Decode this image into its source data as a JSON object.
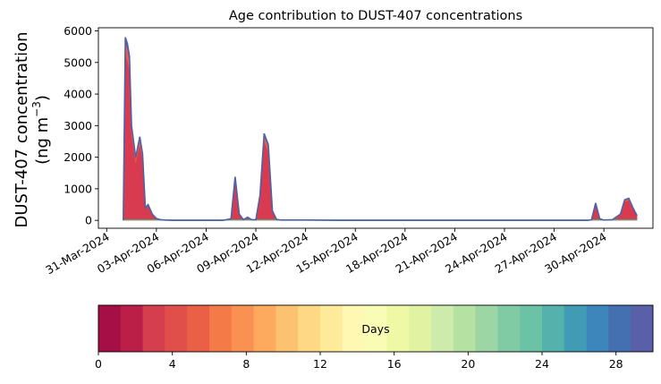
{
  "chart_data": [
    {
      "type": "area",
      "stacked": true,
      "title": "Age contribution to DUST-407 concentrations",
      "ylabel_line1": "DUST-407 concentration",
      "ylabel_line2_prefix": "(ng m",
      "ylabel_line2_sup": "−3",
      "ylabel_line2_suffix": ")",
      "xlabel": "",
      "ylim": [
        -250,
        6100
      ],
      "yticks": [
        0,
        1000,
        2000,
        3000,
        4000,
        5000,
        6000
      ],
      "xlim": [
        "2024-03-30T12:00",
        "2024-05-02T23:00"
      ],
      "xticks": [
        "2024-03-31",
        "2024-04-03",
        "2024-04-06",
        "2024-04-09",
        "2024-04-12",
        "2024-04-15",
        "2024-04-18",
        "2024-04-21",
        "2024-04-24",
        "2024-04-27",
        "2024-04-30"
      ],
      "xtick_labels": [
        "31-Mar-2024",
        "03-Apr-2024",
        "06-Apr-2024",
        "09-Apr-2024",
        "12-Apr-2024",
        "15-Apr-2024",
        "18-Apr-2024",
        "21-Apr-2024",
        "24-Apr-2024",
        "27-Apr-2024",
        "30-Apr-2024"
      ],
      "grid": false,
      "series": [
        {
          "color": "#4c63a8",
          "x": [
            "2024-04-01T00:00",
            "2024-04-01T03:00",
            "2024-04-01T06:00",
            "2024-04-01T09:00",
            "2024-04-01T12:00",
            "2024-04-01T18:00",
            "2024-04-02T00:00",
            "2024-04-02T04:00",
            "2024-04-02T08:00",
            "2024-04-02T12:00",
            "2024-04-02T18:00",
            "2024-04-03T00:00",
            "2024-04-03T06:00",
            "2024-04-03T12:00",
            "2024-04-04T00:00",
            "2024-04-05T00:00",
            "2024-04-06T00:00",
            "2024-04-07T00:00",
            "2024-04-07T12:00",
            "2024-04-07T18:00",
            "2024-04-08T00:00",
            "2024-04-08T06:00",
            "2024-04-08T12:00",
            "2024-04-08T18:00",
            "2024-04-09T00:00",
            "2024-04-09T06:00",
            "2024-04-09T12:00",
            "2024-04-09T18:00",
            "2024-04-10T00:00",
            "2024-04-10T06:00",
            "2024-04-10T12:00",
            "2024-04-11T00:00",
            "2024-04-12T00:00",
            "2024-04-14T00:00",
            "2024-04-18T00:00",
            "2024-04-22T00:00",
            "2024-04-26T00:00",
            "2024-04-28T00:00",
            "2024-04-29T00:00",
            "2024-04-29T06:00",
            "2024-04-29T12:00",
            "2024-04-29T18:00",
            "2024-04-30T00:00",
            "2024-04-30T12:00",
            "2024-05-01T00:00",
            "2024-05-01T06:00",
            "2024-05-01T12:00",
            "2024-05-01T18:00",
            "2024-05-02T00:00"
          ],
          "values": [
            0,
            5800,
            5600,
            5200,
            3000,
            2000,
            2650,
            2100,
            400,
            500,
            200,
            60,
            20,
            10,
            0,
            0,
            0,
            0,
            50,
            1380,
            200,
            20,
            100,
            20,
            20,
            800,
            2750,
            2400,
            300,
            30,
            10,
            10,
            10,
            0,
            0,
            0,
            0,
            0,
            0,
            20,
            550,
            50,
            10,
            20,
            200,
            650,
            700,
            400,
            150
          ]
        }
      ],
      "area_colors": [
        "#d83a4f",
        "#ea5b4b",
        "#4c63a8"
      ]
    },
    {
      "type": "colorbar",
      "label": "Days",
      "range": [
        0,
        30
      ],
      "ticks": [
        0,
        4,
        8,
        12,
        16,
        20,
        24,
        28
      ],
      "tick_labels": [
        "0",
        "4",
        "8",
        "12",
        "16",
        "20",
        "24",
        "28"
      ],
      "colors": [
        "#a50f45",
        "#bb1f47",
        "#d53e4f",
        "#e04f4a",
        "#ea6046",
        "#f47a47",
        "#f99153",
        "#fdaa5f",
        "#fdc271",
        "#fed884",
        "#feeb9a",
        "#fff8b3",
        "#f9fcb5",
        "#eff9a5",
        "#e1f3a2",
        "#cdebaa",
        "#b5e1a3",
        "#9cd6a4",
        "#80cba4",
        "#6cc2a5",
        "#55b1ab",
        "#419bb5",
        "#3d86bb",
        "#4470b1",
        "#5a5fa9"
      ]
    }
  ]
}
